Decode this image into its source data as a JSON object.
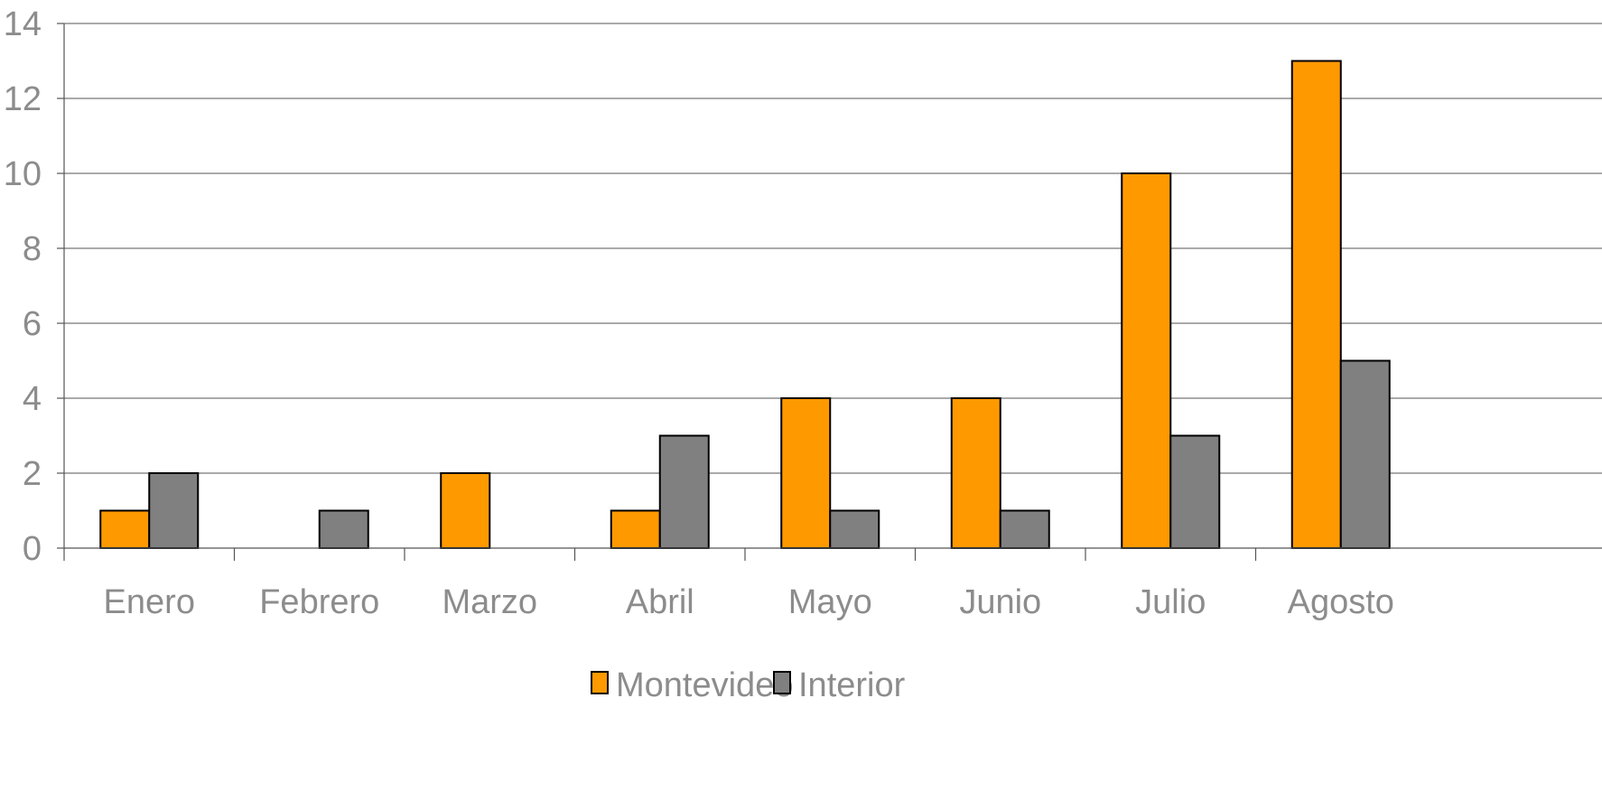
{
  "chart_data": {
    "type": "bar",
    "categories": [
      "Enero",
      "Febrero",
      "Marzo",
      "Abril",
      "Mayo",
      "Junio",
      "Julio",
      "Agosto"
    ],
    "series": [
      {
        "name": "Montevideo",
        "color": "#ff9900",
        "values": [
          1,
          0,
          2,
          1,
          4,
          4,
          10,
          13
        ]
      },
      {
        "name": "Interior",
        "color": "#808080",
        "values": [
          2,
          1,
          0,
          3,
          1,
          1,
          3,
          5
        ]
      }
    ],
    "y_ticks": [
      "0",
      "2",
      "4",
      "6",
      "8",
      "10",
      "12",
      "14"
    ],
    "ylim": [
      0,
      14
    ],
    "grid": true,
    "legend_position": "bottom-center"
  }
}
